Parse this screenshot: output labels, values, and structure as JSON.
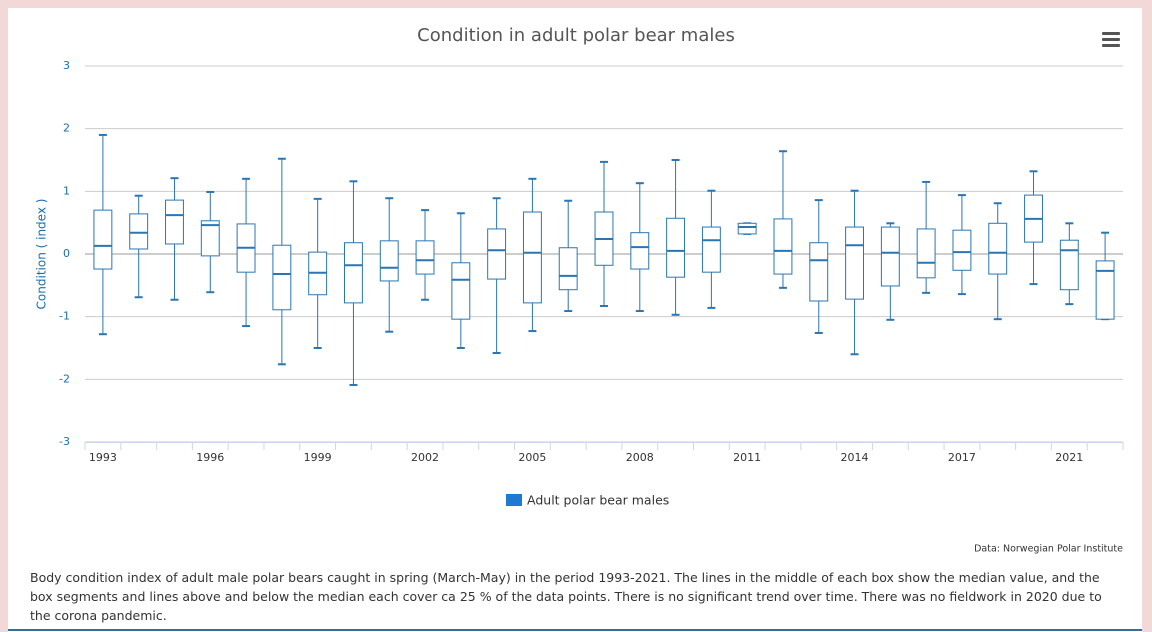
{
  "chart_data": {
    "type": "boxplot",
    "title": "Condition in adult polar bear males",
    "y_axis_label": "Condition ( index )",
    "categories": [
      "1993",
      null,
      null,
      "1996",
      null,
      null,
      "1999",
      null,
      null,
      "2002",
      null,
      null,
      "2005",
      null,
      null,
      "2008",
      null,
      null,
      "2011",
      null,
      null,
      "2014",
      null,
      null,
      "2017",
      null,
      null,
      "2021",
      null
    ],
    "series": [
      {
        "name": "Adult polar bear males",
        "color": "#2a76b3",
        "legend_color": "#1f78d1",
        "low": [
          -1.28,
          -0.69,
          -0.73,
          -0.61,
          -1.15,
          -1.76,
          -1.5,
          -2.09,
          -1.24,
          -0.73,
          -1.5,
          -1.58,
          -1.23,
          -0.91,
          -0.83,
          -0.91,
          -0.97,
          -0.86,
          0.32,
          -0.54,
          -1.26,
          -1.6,
          -1.05,
          -0.62,
          -0.64,
          -1.04,
          -0.48,
          -0.8,
          -1.04
        ],
        "q1": [
          -0.24,
          0.08,
          0.16,
          -0.03,
          -0.29,
          -0.89,
          -0.65,
          -0.78,
          -0.43,
          -0.32,
          -1.04,
          -0.4,
          -0.78,
          -0.57,
          -0.18,
          -0.24,
          -0.37,
          -0.29,
          0.32,
          -0.32,
          -0.75,
          -0.72,
          -0.51,
          -0.38,
          -0.26,
          -0.32,
          0.19,
          -0.57,
          -1.04
        ],
        "median": [
          0.13,
          0.34,
          0.62,
          0.46,
          0.1,
          -0.32,
          -0.3,
          -0.18,
          -0.22,
          -0.1,
          -0.41,
          0.06,
          0.02,
          -0.35,
          0.24,
          0.11,
          0.05,
          0.22,
          0.43,
          0.05,
          -0.1,
          0.14,
          0.02,
          -0.14,
          0.03,
          0.02,
          0.56,
          0.06,
          -0.27
        ],
        "q3": [
          0.7,
          0.64,
          0.86,
          0.53,
          0.48,
          0.14,
          0.03,
          0.18,
          0.21,
          0.21,
          -0.14,
          0.4,
          0.67,
          0.1,
          0.67,
          0.34,
          0.57,
          0.43,
          0.49,
          0.56,
          0.18,
          0.43,
          0.43,
          0.4,
          0.38,
          0.49,
          0.94,
          0.22,
          -0.11
        ],
        "high": [
          1.9,
          0.93,
          1.21,
          0.99,
          1.2,
          1.52,
          0.88,
          1.16,
          0.89,
          0.7,
          0.65,
          0.89,
          1.2,
          0.85,
          1.47,
          1.13,
          1.5,
          1.01,
          0.49,
          1.64,
          0.86,
          1.01,
          0.49,
          1.15,
          0.94,
          0.81,
          1.32,
          0.49,
          0.34
        ]
      }
    ],
    "ylim": [
      -3,
      3
    ],
    "yticks": [
      -3,
      -2,
      -1,
      0,
      1,
      2,
      3
    ],
    "grid": true,
    "legend_position": "bottom",
    "credits": "Data: Norwegian Polar Institute",
    "caption": "Body condition index of adult male polar bears caught in spring (March-May) in the period 1993-2021. The lines in the middle of each box show the median value, and the box segments and lines above and below the median each cover ca 25 % of the data points. There is no significant trend over time. There was no fieldwork in 2020 due to the corona pandemic."
  }
}
